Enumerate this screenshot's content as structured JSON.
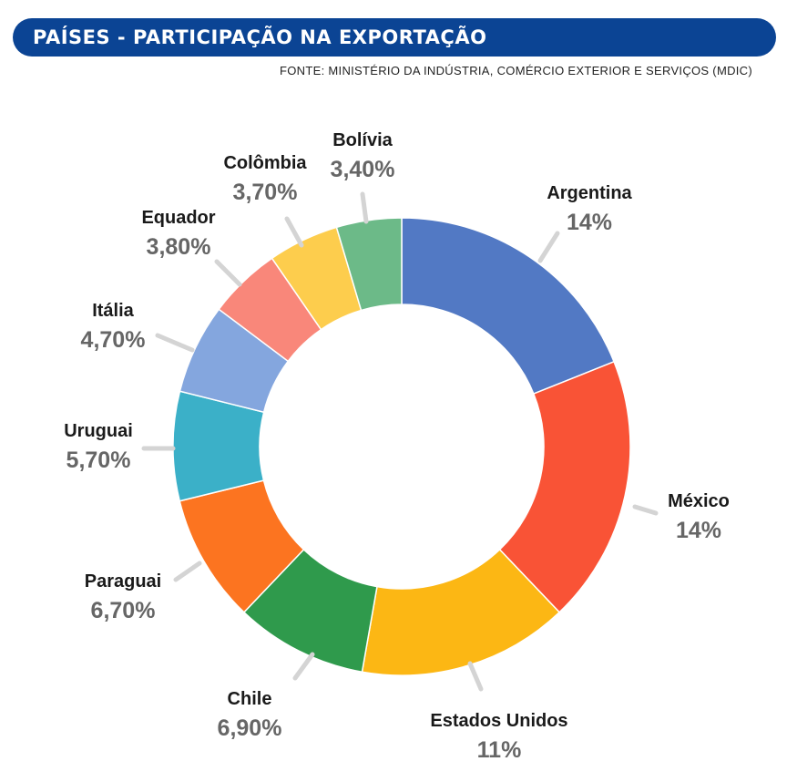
{
  "header": {
    "title": "PAÍSES - PARTICIPAÇÃO NA EXPORTAÇÃO",
    "source": "FONTE: MINISTÉRIO DA INDÚSTRIA, COMÉRCIO EXTERIOR E SERVIÇOS (MDIC)",
    "bar_color": "#0b4494"
  },
  "chart_data": {
    "type": "pie",
    "donut": true,
    "title": "",
    "slices": [
      {
        "label": "Argentina",
        "display": "14%",
        "value": 14,
        "color": "#5279c4"
      },
      {
        "label": "México",
        "display": "14%",
        "value": 14,
        "color": "#f95336"
      },
      {
        "label": "Estados Unidos",
        "display": "11%",
        "value": 11,
        "color": "#fcb714"
      },
      {
        "label": "Chile",
        "display": "6,90%",
        "value": 6.9,
        "color": "#2f9a4c"
      },
      {
        "label": "Paraguai",
        "display": "6,70%",
        "value": 6.7,
        "color": "#fc7420"
      },
      {
        "label": "Uruguai",
        "display": "5,70%",
        "value": 5.7,
        "color": "#3bb0c8"
      },
      {
        "label": "Itália",
        "display": "4,70%",
        "value": 4.7,
        "color": "#84a6de"
      },
      {
        "label": "Equador",
        "display": "3,80%",
        "value": 3.8,
        "color": "#f9877a"
      },
      {
        "label": "Colômbia",
        "display": "3,70%",
        "value": 3.7,
        "color": "#fdcd4d"
      },
      {
        "label": "Bolívia",
        "display": "3,40%",
        "value": 3.4,
        "color": "#6cba88"
      }
    ]
  }
}
